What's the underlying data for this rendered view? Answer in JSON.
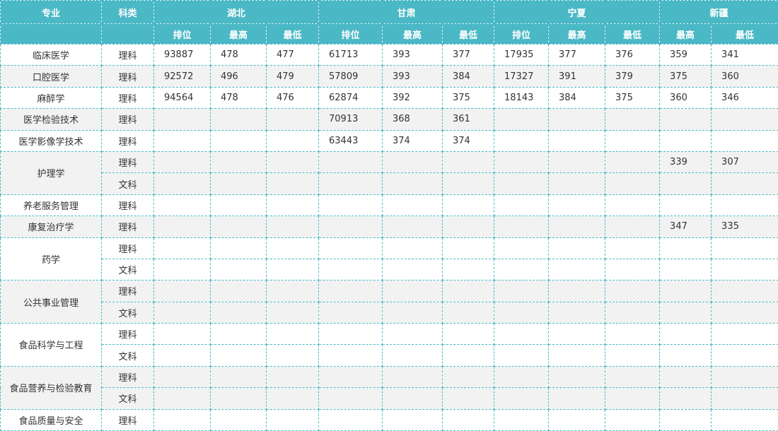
{
  "header": {
    "major": "专业",
    "type": "科类",
    "groups": [
      {
        "name": "湖北",
        "columns": [
          "排位",
          "最高",
          "最低"
        ]
      },
      {
        "name": "甘肃",
        "columns": [
          "排位",
          "最高",
          "最低"
        ]
      },
      {
        "name": "宁夏",
        "columns": [
          "排位",
          "最高",
          "最低"
        ]
      },
      {
        "name": "新疆",
        "columns": [
          "最高",
          "最低"
        ]
      }
    ]
  },
  "majors": [
    {
      "name": "临床医学",
      "rows": [
        {
          "type": "理科",
          "values": [
            93887,
            478,
            477,
            61713,
            393,
            377,
            17935,
            377,
            376,
            359,
            341
          ]
        }
      ]
    },
    {
      "name": "口腔医学",
      "rows": [
        {
          "type": "理科",
          "values": [
            92572,
            496,
            479,
            57809,
            393,
            384,
            17327,
            391,
            379,
            375,
            360
          ]
        }
      ]
    },
    {
      "name": "麻醉学",
      "rows": [
        {
          "type": "理科",
          "values": [
            94564,
            478,
            476,
            62874,
            392,
            375,
            18143,
            384,
            375,
            360,
            346
          ]
        }
      ]
    },
    {
      "name": "医学检验技术",
      "rows": [
        {
          "type": "理科",
          "values": [
            null,
            null,
            null,
            70913,
            368,
            361,
            null,
            null,
            null,
            null,
            null
          ]
        }
      ]
    },
    {
      "name": "医学影像学技术",
      "rows": [
        {
          "type": "理科",
          "values": [
            null,
            null,
            null,
            63443,
            374,
            374,
            null,
            null,
            null,
            null,
            null
          ]
        }
      ]
    },
    {
      "name": "护理学",
      "rows": [
        {
          "type": "理科",
          "values": [
            null,
            null,
            null,
            null,
            null,
            null,
            null,
            null,
            null,
            339,
            307
          ]
        },
        {
          "type": "文科",
          "values": [
            null,
            null,
            null,
            null,
            null,
            null,
            null,
            null,
            null,
            null,
            null
          ]
        }
      ]
    },
    {
      "name": "养老服务管理",
      "rows": [
        {
          "type": "理科",
          "values": [
            null,
            null,
            null,
            null,
            null,
            null,
            null,
            null,
            null,
            null,
            null
          ]
        }
      ]
    },
    {
      "name": "康复治疗学",
      "rows": [
        {
          "type": "理科",
          "values": [
            null,
            null,
            null,
            null,
            null,
            null,
            null,
            null,
            null,
            347,
            335
          ]
        }
      ]
    },
    {
      "name": "药学",
      "rows": [
        {
          "type": "理科",
          "values": [
            null,
            null,
            null,
            null,
            null,
            null,
            null,
            null,
            null,
            null,
            null
          ]
        },
        {
          "type": "文科",
          "values": [
            null,
            null,
            null,
            null,
            null,
            null,
            null,
            null,
            null,
            null,
            null
          ]
        }
      ]
    },
    {
      "name": "公共事业管理",
      "rows": [
        {
          "type": "理科",
          "values": [
            null,
            null,
            null,
            null,
            null,
            null,
            null,
            null,
            null,
            null,
            null
          ]
        },
        {
          "type": "文科",
          "values": [
            null,
            null,
            null,
            null,
            null,
            null,
            null,
            null,
            null,
            null,
            null
          ]
        }
      ]
    },
    {
      "name": "食品科学与工程",
      "rows": [
        {
          "type": "理科",
          "values": [
            null,
            null,
            null,
            null,
            null,
            null,
            null,
            null,
            null,
            null,
            null
          ]
        },
        {
          "type": "文科",
          "values": [
            null,
            null,
            null,
            null,
            null,
            null,
            null,
            null,
            null,
            null,
            null
          ]
        }
      ]
    },
    {
      "name": "食品营养与检验教育",
      "rows": [
        {
          "type": "理科",
          "values": [
            null,
            null,
            null,
            null,
            null,
            null,
            null,
            null,
            null,
            null,
            null
          ]
        },
        {
          "type": "文科",
          "values": [
            null,
            null,
            null,
            null,
            null,
            null,
            null,
            null,
            null,
            null,
            null
          ]
        }
      ]
    },
    {
      "name": "食品质量与安全",
      "rows": [
        {
          "type": "理科",
          "values": [
            null,
            null,
            null,
            null,
            null,
            null,
            null,
            null,
            null,
            null,
            null
          ]
        }
      ]
    }
  ]
}
